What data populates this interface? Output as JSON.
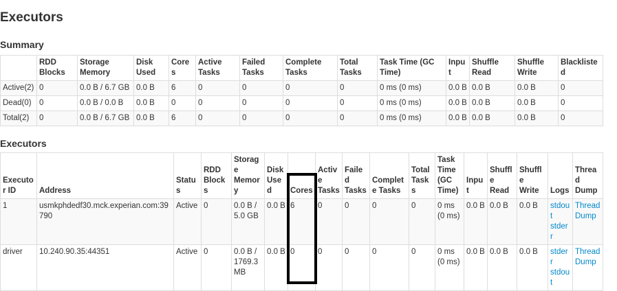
{
  "page_title": "Executors",
  "summary": {
    "heading": "Summary",
    "headers": [
      "",
      "RDD Blocks",
      "Storage Memory",
      "Disk Used",
      "Cores",
      "Active Tasks",
      "Failed Tasks",
      "Complete Tasks",
      "Total Tasks",
      "Task Time (GC Time)",
      "Input",
      "Shuffle Read",
      "Shuffle Write",
      "Blacklisted"
    ],
    "rows": [
      [
        "Active(2)",
        "0",
        "0.0 B / 6.7 GB",
        "0.0 B",
        "6",
        "0",
        "0",
        "0",
        "0",
        "0 ms (0 ms)",
        "0.0 B",
        "0.0 B",
        "0.0 B",
        "0"
      ],
      [
        "Dead(0)",
        "0",
        "0.0 B / 0.0 B",
        "0.0 B",
        "0",
        "0",
        "0",
        "0",
        "0",
        "0 ms (0 ms)",
        "0.0 B",
        "0.0 B",
        "0.0 B",
        "0"
      ],
      [
        "Total(2)",
        "0",
        "0.0 B / 6.7 GB",
        "0.0 B",
        "6",
        "0",
        "0",
        "0",
        "0",
        "0 ms (0 ms)",
        "0.0 B",
        "0.0 B",
        "0.0 B",
        "0"
      ]
    ]
  },
  "executors": {
    "heading": "Executors",
    "headers": [
      "Executor ID",
      "Address",
      "Status",
      "RDD Blocks",
      "Storage Memory",
      "Disk Used",
      "Cores",
      "Active Tasks",
      "Failed Tasks",
      "Complete Tasks",
      "Total Tasks",
      "Task Time (GC Time)",
      "Input",
      "Shuffle Read",
      "Shuffle Write",
      "Logs",
      "Thread Dump"
    ],
    "rows": [
      {
        "cells": [
          "1",
          "usmkphdedf30.mck.experian.com:39790",
          "Active",
          "0",
          "0.0 B / 5.0 GB",
          "0.0 B",
          "6",
          "0",
          "0",
          "0",
          "0",
          "0 ms (0 ms)",
          "0.0 B",
          "0.0 B",
          "0.0 B"
        ],
        "logs": [
          "stdout",
          "stderr"
        ],
        "thread_dump": "Thread Dump"
      },
      {
        "cells": [
          "driver",
          "10.240.90.35:44351",
          "Active",
          "0",
          "0.0 B / 1769.3 MB",
          "0.0 B",
          "0",
          "0",
          "0",
          "0",
          "0",
          "0 ms (0 ms)",
          "0.0 B",
          "0.0 B",
          "0.0 B"
        ],
        "logs": [
          "stderr",
          "stdout"
        ],
        "thread_dump": "Thread Dump"
      }
    ]
  },
  "highlight": {
    "column": "Cores",
    "color": "#000000"
  },
  "link_color": "#0088cc"
}
